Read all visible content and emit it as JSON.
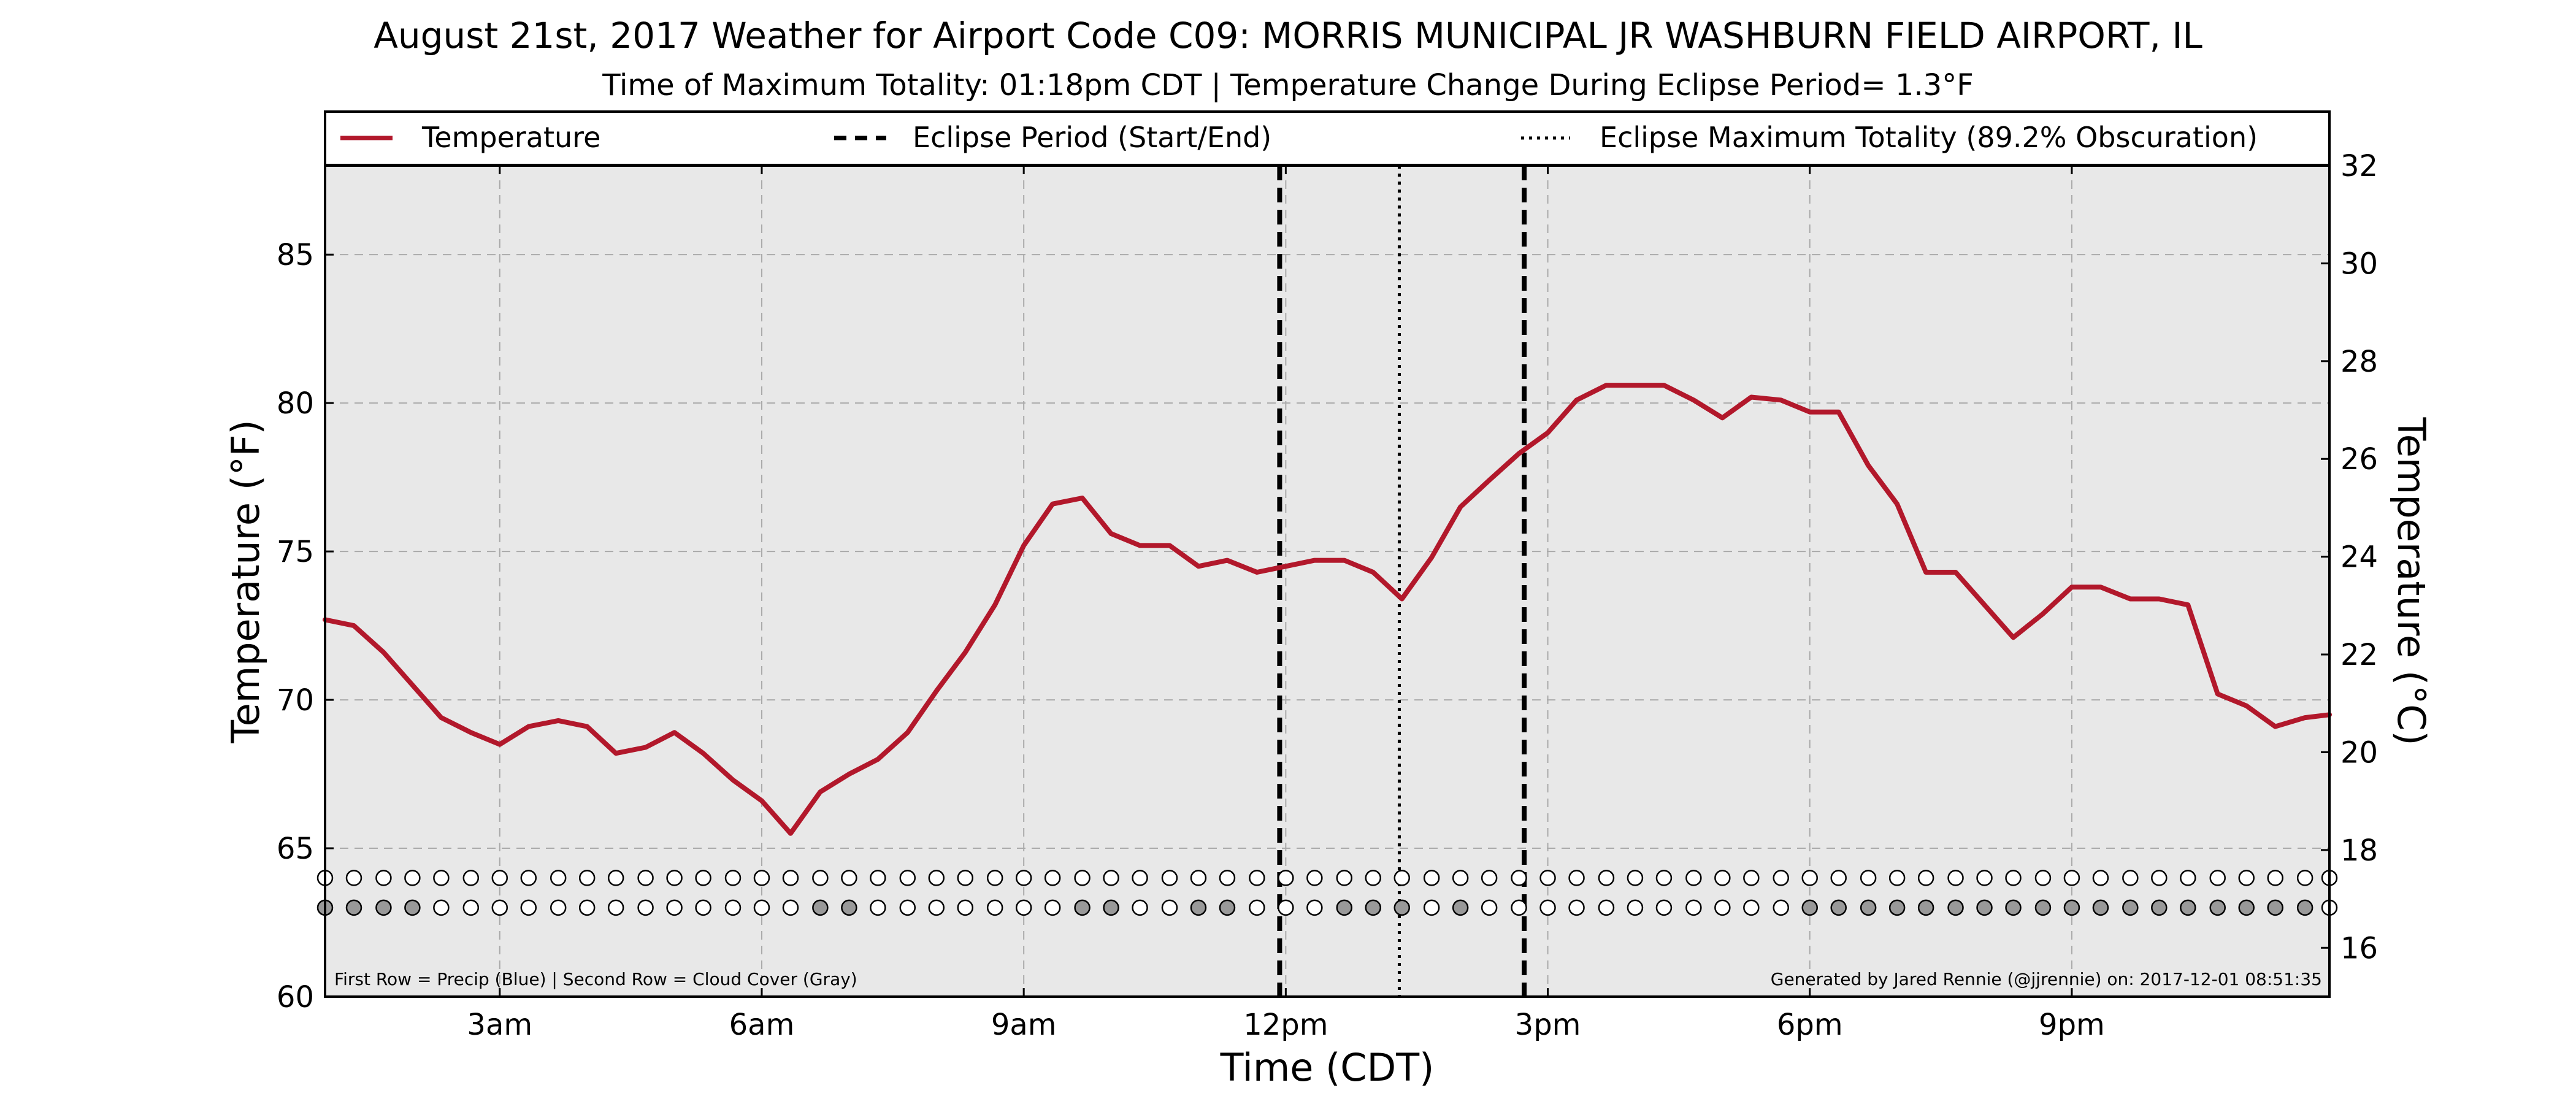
{
  "chart_data": {
    "type": "line",
    "title": "August 21st, 2017 Weather for Airport Code C09: MORRIS MUNICIPAL JR WASHBURN FIELD AIRPORT, IL",
    "subtitle": "Time of Maximum Totality: 01:18pm CDT | Temperature Change During Eclipse Period= 1.3°F",
    "xlabel": "Time (CDT)",
    "ylabel": "Temperature (°F)",
    "ylabel_right": "Temperature (°C)",
    "xlim": [
      1.0,
      23.95
    ],
    "ylim": [
      60,
      88
    ],
    "ylim_right": [
      15,
      32
    ],
    "x_ticks": [
      {
        "x": 3,
        "label": "3am"
      },
      {
        "x": 6,
        "label": "6am"
      },
      {
        "x": 9,
        "label": "9am"
      },
      {
        "x": 12,
        "label": "12pm"
      },
      {
        "x": 15,
        "label": "3pm"
      },
      {
        "x": 18,
        "label": "6pm"
      },
      {
        "x": 21,
        "label": "9pm"
      }
    ],
    "y_ticks": [
      60,
      65,
      70,
      75,
      80,
      85
    ],
    "y_ticks_right": [
      16,
      18,
      20,
      22,
      24,
      26,
      28,
      30,
      32
    ],
    "grid": true,
    "legend_position": "top",
    "legend": [
      {
        "label": "Temperature",
        "style": "solid",
        "color": "#b2182b"
      },
      {
        "label": "Eclipse Period (Start/End)",
        "style": "dashed",
        "color": "#000000"
      },
      {
        "label": "Eclipse Maximum Totality (89.2% Obscuration)",
        "style": "dotted",
        "color": "#000000"
      }
    ],
    "series": [
      {
        "name": "Temperature",
        "color": "#b2182b",
        "x": [
          1.0,
          1.33,
          1.67,
          2.0,
          2.33,
          2.67,
          3.0,
          3.33,
          3.67,
          4.0,
          4.33,
          4.67,
          5.0,
          5.33,
          5.67,
          6.0,
          6.33,
          6.67,
          7.0,
          7.33,
          7.67,
          8.0,
          8.33,
          8.67,
          9.0,
          9.33,
          9.67,
          10.0,
          10.33,
          10.67,
          11.0,
          11.33,
          11.67,
          12.0,
          12.33,
          12.67,
          13.0,
          13.33,
          13.67,
          14.0,
          14.33,
          14.67,
          15.0,
          15.33,
          15.67,
          16.0,
          16.33,
          16.67,
          17.0,
          17.33,
          17.67,
          18.0,
          18.33,
          18.67,
          19.0,
          19.33,
          19.67,
          20.0,
          20.33,
          20.67,
          21.0,
          21.33,
          21.67,
          22.0,
          22.33,
          22.67,
          23.0,
          23.33,
          23.67,
          23.95
        ],
        "values": [
          72.7,
          72.5,
          71.6,
          70.5,
          69.4,
          68.9,
          68.5,
          69.1,
          69.3,
          69.1,
          68.2,
          68.4,
          68.9,
          68.2,
          67.3,
          66.6,
          65.5,
          66.9,
          67.5,
          68.0,
          68.9,
          70.3,
          71.6,
          73.2,
          75.2,
          76.6,
          76.8,
          75.6,
          75.2,
          75.2,
          74.5,
          74.7,
          74.3,
          74.5,
          74.7,
          74.7,
          74.3,
          73.4,
          74.8,
          76.5,
          77.4,
          78.3,
          79.0,
          80.1,
          80.6,
          80.6,
          80.6,
          80.1,
          79.5,
          80.2,
          80.1,
          79.7,
          79.7,
          77.9,
          76.6,
          74.3,
          74.3,
          73.2,
          72.1,
          72.9,
          73.8,
          73.8,
          73.4,
          73.4,
          73.2,
          70.2,
          69.8,
          69.1,
          69.4,
          69.5
        ]
      }
    ],
    "eclipse_start": 11.93,
    "eclipse_end": 14.73,
    "eclipse_max": 13.3,
    "marker_rows": {
      "precip_row_y": 64.0,
      "cloud_row_y": 63.0,
      "x": [
        1.0,
        1.33,
        1.67,
        2.0,
        2.33,
        2.67,
        3.0,
        3.33,
        3.67,
        4.0,
        4.33,
        4.67,
        5.0,
        5.33,
        5.67,
        6.0,
        6.33,
        6.67,
        7.0,
        7.33,
        7.67,
        8.0,
        8.33,
        8.67,
        9.0,
        9.33,
        9.67,
        10.0,
        10.33,
        10.67,
        11.0,
        11.33,
        11.67,
        12.0,
        12.33,
        12.67,
        13.0,
        13.33,
        13.67,
        14.0,
        14.33,
        14.67,
        15.0,
        15.33,
        15.67,
        16.0,
        16.33,
        16.67,
        17.0,
        17.33,
        17.67,
        18.0,
        18.33,
        18.67,
        19.0,
        19.33,
        19.67,
        20.0,
        20.33,
        20.67,
        21.0,
        21.33,
        21.67,
        22.0,
        22.33,
        22.67,
        23.0,
        23.33,
        23.67,
        23.95
      ],
      "precip": [
        0,
        0,
        0,
        0,
        0,
        0,
        0,
        0,
        0,
        0,
        0,
        0,
        0,
        0,
        0,
        0,
        0,
        0,
        0,
        0,
        0,
        0,
        0,
        0,
        0,
        0,
        0,
        0,
        0,
        0,
        0,
        0,
        0,
        0,
        0,
        0,
        0,
        0,
        0,
        0,
        0,
        0,
        0,
        0,
        0,
        0,
        0,
        0,
        0,
        0,
        0,
        0,
        0,
        0,
        0,
        0,
        0,
        0,
        0,
        0,
        0,
        0,
        0,
        0,
        0,
        0,
        0,
        0,
        0,
        0
      ],
      "cloud": [
        1,
        1,
        1,
        1,
        0,
        0,
        0,
        0,
        0,
        0,
        0,
        0,
        0,
        0,
        0,
        0,
        0,
        1,
        1,
        0,
        0,
        0,
        0,
        0,
        0,
        0,
        1,
        1,
        0,
        0,
        1,
        1,
        0,
        0,
        0,
        1,
        1,
        1,
        0,
        1,
        0,
        0,
        0,
        0,
        0,
        0,
        0,
        0,
        0,
        0,
        0,
        1,
        1,
        1,
        1,
        1,
        1,
        1,
        1,
        1,
        1,
        1,
        1,
        1,
        1,
        1,
        1,
        1,
        1,
        0
      ],
      "precip_color": "#3b6fd1",
      "cloud_color": "#999999"
    },
    "footnote_left": "First Row = Precip (Blue) | Second Row = Cloud Cover (Gray)",
    "footnote_right": "Generated by Jared Rennie (@jjrennie) on: 2017-12-01 08:51:35"
  }
}
